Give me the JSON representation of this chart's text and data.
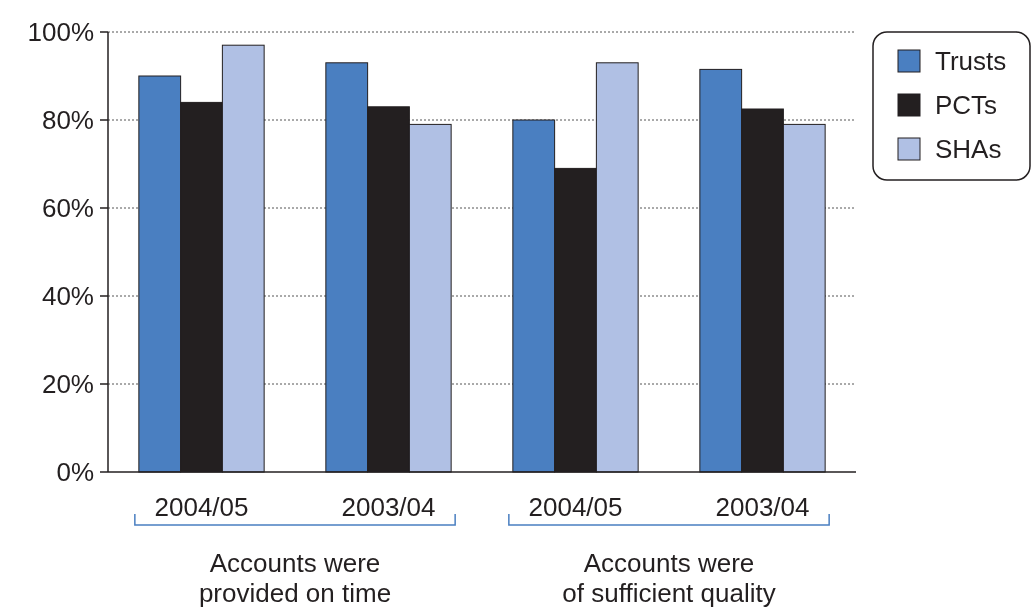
{
  "chart_data": {
    "type": "bar",
    "categories": [
      "2004/05",
      "2003/04",
      "2004/05",
      "2003/04"
    ],
    "series": [
      {
        "name": "Trusts",
        "color": "#4a7fc1",
        "values": [
          90,
          93,
          80,
          91.5
        ]
      },
      {
        "name": "PCTs",
        "color": "#231f20",
        "values": [
          84,
          83,
          69,
          82.5
        ]
      },
      {
        "name": "SHAs",
        "color": "#b0c0e4",
        "values": [
          97,
          79,
          93,
          79
        ]
      }
    ],
    "ylim": [
      0,
      100
    ],
    "yticks": [
      {
        "value": 0,
        "label": "0%"
      },
      {
        "value": 20,
        "label": "20%"
      },
      {
        "value": 40,
        "label": "40%"
      },
      {
        "value": 60,
        "label": "60%"
      },
      {
        "value": 80,
        "label": "80%"
      },
      {
        "value": 100,
        "label": "100%"
      }
    ],
    "grid": "y",
    "legend": "top right",
    "annotations": [
      "Accounts were provided on time",
      "Accounts were of sufficient quality"
    ]
  }
}
